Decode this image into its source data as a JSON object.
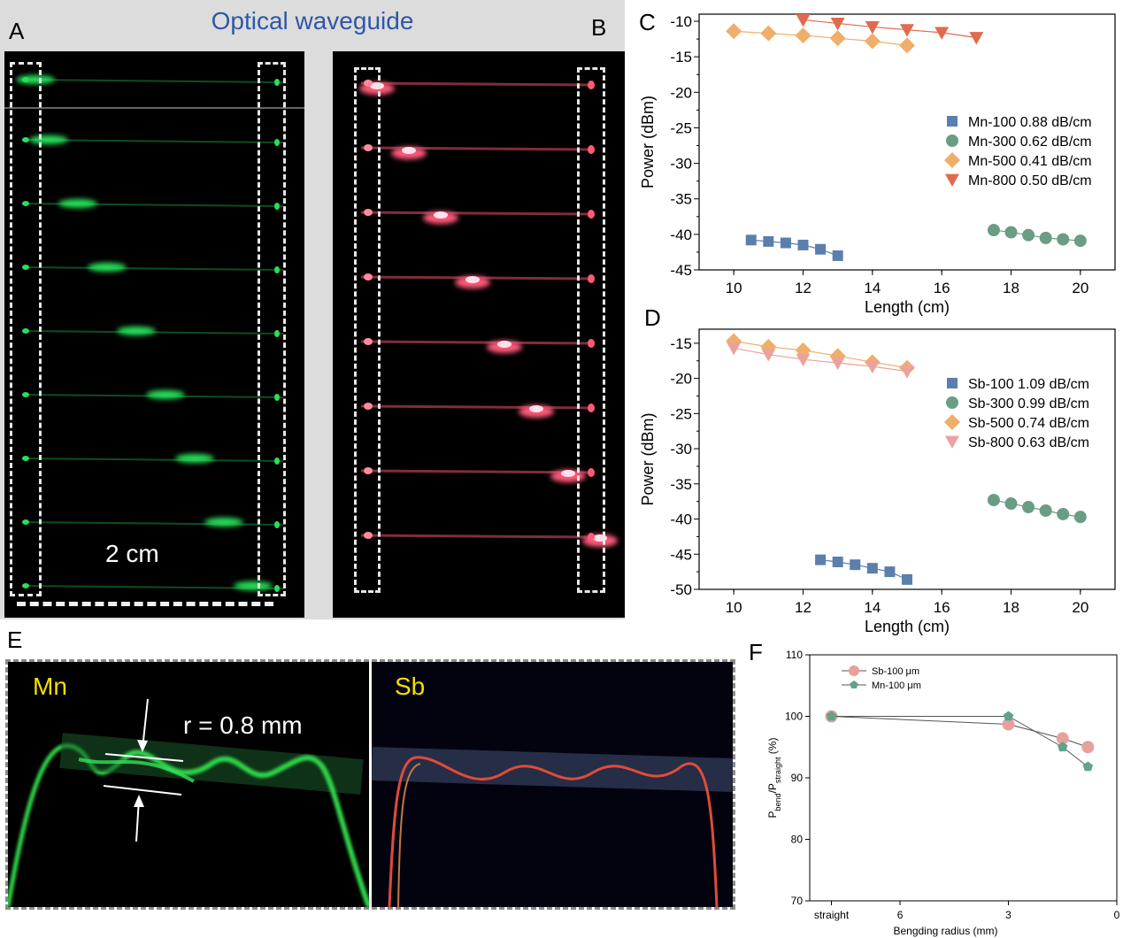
{
  "panels": {
    "A": "A",
    "B": "B",
    "C": "C",
    "D": "D",
    "E": "E",
    "F": "F"
  },
  "photo_ab": {
    "title": "Optical waveguide",
    "scale_bar_label": "2 cm",
    "glow_a": "#25e05a",
    "glow_b": "#ff5a78"
  },
  "photo_e": {
    "left_label": "Mn",
    "right_label": "Sb",
    "radius_label": "r = 0.8 mm"
  },
  "chart_data": [
    {
      "id": "C",
      "type": "scatter",
      "xlabel": "Length (cm)",
      "ylabel": "Power (dBm)",
      "xlim": [
        9,
        21
      ],
      "ylim": [
        -45,
        -9
      ],
      "xticks": [
        10,
        12,
        14,
        16,
        18,
        20
      ],
      "yticks": [
        -10,
        -15,
        -20,
        -25,
        -30,
        -35,
        -40,
        -45
      ],
      "legend_position": "right",
      "series": [
        {
          "name": "Mn-100 0.88 dB/cm",
          "marker": "square",
          "color": "#5b7fad",
          "x": [
            10.5,
            11,
            11.5,
            12,
            12.5,
            13
          ],
          "y": [
            -40.8,
            -41.0,
            -41.2,
            -41.5,
            -42.1,
            -43.0
          ]
        },
        {
          "name": "Mn-300 0.62 dB/cm",
          "marker": "circle",
          "color": "#6b9c84",
          "x": [
            17.5,
            18,
            18.5,
            19,
            19.5,
            20
          ],
          "y": [
            -39.4,
            -39.7,
            -40.1,
            -40.5,
            -40.7,
            -40.9
          ]
        },
        {
          "name": "Mn-500 0.41 dB/cm",
          "marker": "diamond",
          "color": "#efae6a",
          "x": [
            10,
            11,
            12,
            13,
            14,
            15
          ],
          "y": [
            -11.4,
            -11.7,
            -12.0,
            -12.4,
            -12.8,
            -13.4
          ]
        },
        {
          "name": "Mn-800 0.50 dB/cm",
          "marker": "triangle-down",
          "color": "#e06a4f",
          "x": [
            12,
            13,
            14,
            15,
            16,
            17
          ],
          "y": [
            -9.8,
            -10.3,
            -10.8,
            -11.2,
            -11.6,
            -12.3
          ]
        }
      ]
    },
    {
      "id": "D",
      "type": "scatter",
      "xlabel": "Length (cm)",
      "ylabel": "Power (dBm)",
      "xlim": [
        9,
        21
      ],
      "ylim": [
        -50,
        -13
      ],
      "xticks": [
        10,
        12,
        14,
        16,
        18,
        20
      ],
      "yticks": [
        -15,
        -20,
        -25,
        -30,
        -35,
        -40,
        -45,
        -50
      ],
      "legend_position": "right",
      "series": [
        {
          "name": "Sb-100 1.09 dB/cm",
          "marker": "square",
          "color": "#5b7fad",
          "x": [
            12.5,
            13,
            13.5,
            14,
            14.5,
            15
          ],
          "y": [
            -45.8,
            -46.1,
            -46.5,
            -47.0,
            -47.5,
            -48.6
          ]
        },
        {
          "name": "Sb-300 0.99 dB/cm",
          "marker": "circle",
          "color": "#6b9c84",
          "x": [
            17.5,
            18,
            18.5,
            19,
            19.5,
            20
          ],
          "y": [
            -37.3,
            -37.8,
            -38.3,
            -38.8,
            -39.3,
            -39.7
          ]
        },
        {
          "name": "Sb-500 0.74 dB/cm",
          "marker": "diamond",
          "color": "#efae6a",
          "x": [
            10,
            11,
            12,
            13,
            14,
            15
          ],
          "y": [
            -14.7,
            -15.5,
            -16.0,
            -16.8,
            -17.7,
            -18.5
          ]
        },
        {
          "name": "Sb-800 0.63 dB/cm",
          "marker": "triangle-down",
          "color": "#eaa39c",
          "x": [
            10,
            11,
            12,
            13,
            14,
            15
          ],
          "y": [
            -15.7,
            -16.6,
            -17.3,
            -17.8,
            -18.3,
            -19.0
          ]
        }
      ]
    },
    {
      "id": "F",
      "type": "line",
      "xlabel": "Bengding radius (mm)",
      "ylabel_main": "P",
      "ylabel_sub1": "bend",
      "ylabel_mid": "/P",
      "ylabel_sub2": "straight",
      "ylabel_unit": " (%)",
      "xlim": [
        8.5,
        0
      ],
      "ylim": [
        70,
        110
      ],
      "xtick_labels": [
        {
          "v": 7.9,
          "label": "straight"
        },
        {
          "v": 6,
          "label": "6"
        },
        {
          "v": 3,
          "label": "3"
        },
        {
          "v": 0,
          "label": "0"
        }
      ],
      "yticks": [
        70,
        80,
        90,
        100,
        110
      ],
      "legend_position": "top-left",
      "series": [
        {
          "name": "Sb-100 μm",
          "marker": "circle",
          "color": "#e8a09c",
          "x": [
            7.9,
            3,
            1.5,
            0.8
          ],
          "y": [
            100,
            98.7,
            96.4,
            95.0
          ]
        },
        {
          "name": "Mn-100 μm",
          "marker": "pentagon",
          "color": "#5fa38a",
          "x": [
            7.9,
            3,
            1.5,
            0.8
          ],
          "y": [
            100,
            100,
            95.0,
            91.8
          ]
        }
      ]
    }
  ]
}
